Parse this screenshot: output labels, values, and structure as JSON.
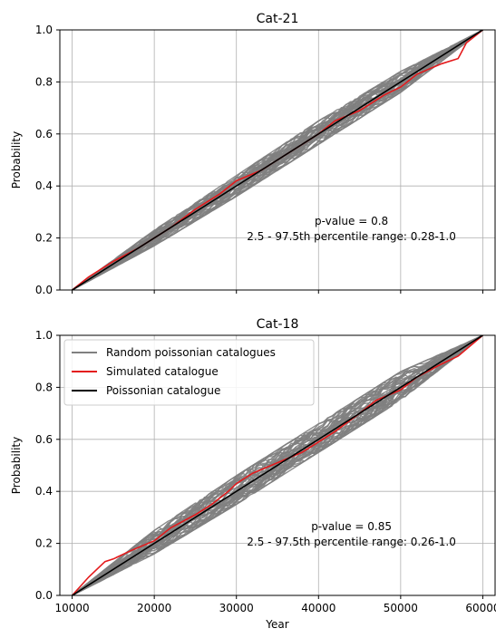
{
  "chart_data": [
    {
      "type": "line",
      "title": "Cat-21",
      "xlabel": "",
      "ylabel": "Probability",
      "xlim": [
        8500,
        61500
      ],
      "ylim": [
        0.0,
        1.0
      ],
      "x_ticks": [
        10000,
        20000,
        30000,
        40000,
        50000,
        60000
      ],
      "x_tick_labels_visible": false,
      "y_ticks": [
        0.0,
        0.2,
        0.4,
        0.6,
        0.8,
        1.0
      ],
      "y_tick_labels": [
        "0.0",
        "0.2",
        "0.4",
        "0.6",
        "0.8",
        "1.0"
      ],
      "grid": true,
      "legend": null,
      "annotations": [
        "p-value = 0.8",
        "2.5 - 97.5th percentile range: 0.28-1.0"
      ],
      "series": [
        {
          "name": "Random poissonian catalogues",
          "kind": "band",
          "color": "#808080",
          "x": [
            10000,
            20000,
            30000,
            40000,
            50000,
            60000
          ],
          "lower": [
            0.0,
            0.17,
            0.36,
            0.56,
            0.76,
            1.0
          ],
          "upper": [
            0.0,
            0.23,
            0.44,
            0.65,
            0.84,
            1.0
          ]
        },
        {
          "name": "Simulated catalogue",
          "color": "#e41a1c",
          "x": [
            10000,
            12000,
            15000,
            18000,
            20000,
            22000,
            25000,
            28000,
            30000,
            33000,
            35000,
            38000,
            40000,
            42000,
            45000,
            48000,
            50000,
            52000,
            55000,
            57000,
            58000,
            60000
          ],
          "y": [
            0.0,
            0.05,
            0.11,
            0.16,
            0.2,
            0.24,
            0.31,
            0.37,
            0.42,
            0.46,
            0.5,
            0.56,
            0.6,
            0.65,
            0.69,
            0.75,
            0.78,
            0.83,
            0.87,
            0.89,
            0.95,
            1.0
          ]
        },
        {
          "name": "Poissonian catalogue",
          "color": "#000000",
          "x": [
            10000,
            60000
          ],
          "y": [
            0.0,
            1.0
          ]
        }
      ]
    },
    {
      "type": "line",
      "title": "Cat-18",
      "xlabel": "Year",
      "ylabel": "Probability",
      "xlim": [
        8500,
        61500
      ],
      "ylim": [
        0.0,
        1.0
      ],
      "x_ticks": [
        10000,
        20000,
        30000,
        40000,
        50000,
        60000
      ],
      "x_tick_labels": [
        "10000",
        "20000",
        "30000",
        "40000",
        "50000",
        "60000"
      ],
      "y_ticks": [
        0.0,
        0.2,
        0.4,
        0.6,
        0.8,
        1.0
      ],
      "y_tick_labels": [
        "0.0",
        "0.2",
        "0.4",
        "0.6",
        "0.8",
        "1.0"
      ],
      "grid": true,
      "legend": {
        "placement": "top-left",
        "entries": [
          {
            "label": "Random poissonian catalogues",
            "color": "#808080"
          },
          {
            "label": "Simulated catalogue",
            "color": "#e41a1c"
          },
          {
            "label": "Poissonian catalogue",
            "color": "#000000"
          }
        ]
      },
      "annotations": [
        "p-value = 0.85",
        "2.5 - 97.5th percentile range: 0.26-1.0"
      ],
      "series": [
        {
          "name": "Random poissonian catalogues",
          "kind": "band",
          "color": "#808080",
          "x": [
            10000,
            20000,
            30000,
            40000,
            50000,
            60000
          ],
          "lower": [
            0.0,
            0.16,
            0.35,
            0.55,
            0.75,
            1.0
          ],
          "upper": [
            0.0,
            0.25,
            0.46,
            0.66,
            0.86,
            1.0
          ]
        },
        {
          "name": "Simulated catalogue",
          "color": "#e41a1c",
          "x": [
            10000,
            12000,
            14000,
            15000,
            17000,
            20000,
            22000,
            25000,
            27000,
            29000,
            30000,
            32000,
            35000,
            38000,
            40000,
            42000,
            45000,
            47000,
            50000,
            52000,
            55000,
            57000,
            60000
          ],
          "y": [
            0.0,
            0.07,
            0.13,
            0.14,
            0.17,
            0.21,
            0.26,
            0.31,
            0.35,
            0.4,
            0.43,
            0.47,
            0.51,
            0.55,
            0.59,
            0.63,
            0.7,
            0.75,
            0.79,
            0.84,
            0.89,
            0.92,
            1.0
          ]
        },
        {
          "name": "Poissonian catalogue",
          "color": "#000000",
          "x": [
            10000,
            60000
          ],
          "y": [
            0.0,
            1.0
          ]
        }
      ]
    }
  ]
}
